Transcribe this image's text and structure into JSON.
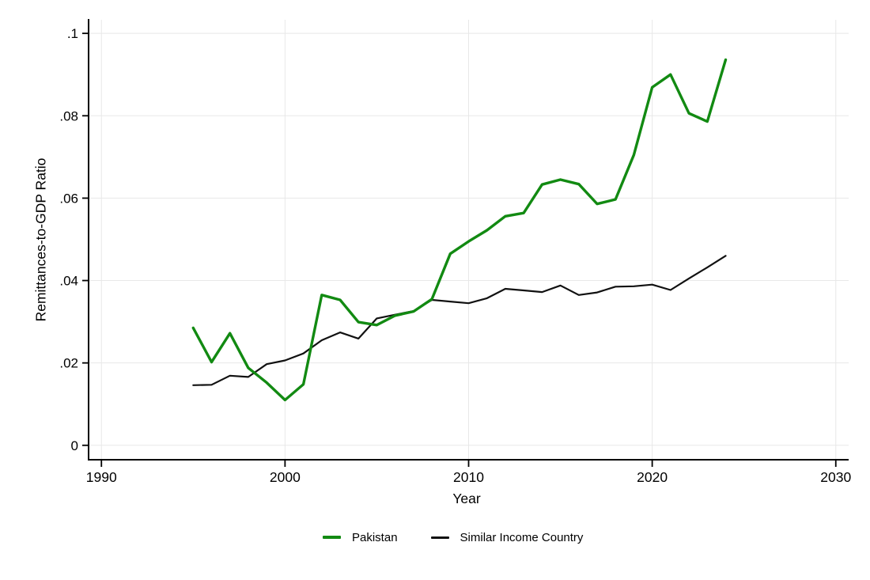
{
  "chart_data": {
    "type": "line",
    "title": "",
    "xlabel": "Year",
    "ylabel": "Remittances-to-GDP Ratio",
    "xlim": [
      1989.3,
      2030.7
    ],
    "ylim": [
      -0.0035,
      0.1033
    ],
    "xticks": [
      1990,
      2000,
      2010,
      2020,
      2030
    ],
    "xtick_labels": [
      "1990",
      "2000",
      "2010",
      "2020",
      "2030"
    ],
    "yticks": [
      0,
      0.02,
      0.04,
      0.06,
      0.08,
      0.1
    ],
    "ytick_labels": [
      "0",
      ".02",
      ".04",
      ".06",
      ".08",
      ".1"
    ],
    "grid": true,
    "gridline_color": "#e8e8e8",
    "axis_color": "#000000",
    "background_color": "#ffffff",
    "legend_position": "bottom-center",
    "x": [
      1995,
      1996,
      1997,
      1998,
      1999,
      2000,
      2001,
      2002,
      2003,
      2004,
      2005,
      2006,
      2007,
      2008,
      2009,
      2010,
      2011,
      2012,
      2013,
      2014,
      2015,
      2016,
      2017,
      2018,
      2019,
      2020,
      2021,
      2022,
      2023,
      2024
    ],
    "series": [
      {
        "name": "Pakistan",
        "color": "#128a12",
        "values": [
          0.0285,
          0.0202,
          0.0272,
          0.0188,
          0.0152,
          0.011,
          0.0148,
          0.0365,
          0.0353,
          0.0299,
          0.0292,
          0.0315,
          0.0325,
          0.0355,
          0.0465,
          0.0495,
          0.0522,
          0.0556,
          0.0564,
          0.0633,
          0.0645,
          0.0634,
          0.0586,
          0.0597,
          0.0705,
          0.0869,
          0.09,
          0.0806,
          0.0786,
          0.0936
        ]
      },
      {
        "name": "Similar Income Country",
        "color": "#111111",
        "values": [
          0.0146,
          0.0147,
          0.0169,
          0.0166,
          0.0197,
          0.0206,
          0.0223,
          0.0255,
          0.0274,
          0.0259,
          0.0308,
          0.0317,
          0.0326,
          0.0353,
          0.0349,
          0.0345,
          0.0357,
          0.038,
          0.0376,
          0.0372,
          0.0388,
          0.0365,
          0.0371,
          0.0385,
          0.0386,
          0.039,
          0.0377,
          0.0405,
          0.0432,
          0.046
        ]
      }
    ]
  }
}
